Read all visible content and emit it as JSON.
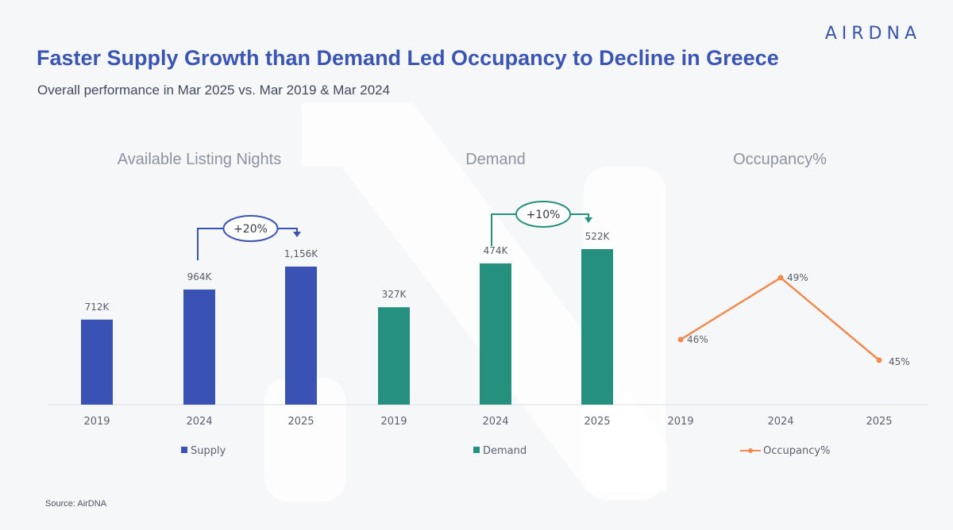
{
  "header": {
    "logo": "AIRDNA",
    "title": "Faster Supply Growth than Demand Led Occupancy to Decline in Greece",
    "subtitle": "Overall performance in Mar 2025 vs. Mar 2019 & Mar 2024"
  },
  "source": "Source: AirDNA",
  "colors": {
    "supply": "#3a52b4",
    "demand": "#26907e",
    "occupancy": "#f08a4e",
    "supply_bubble": "#3a52b4",
    "demand_bubble": "#26907e"
  },
  "chart_data": [
    {
      "type": "bar",
      "title": "Available Listing Nights",
      "categories": [
        "2019",
        "2024",
        "2025"
      ],
      "series": [
        {
          "name": "Supply",
          "values": [
            712,
            964,
            1156
          ]
        }
      ],
      "data_labels": [
        "712K",
        "964K",
        "1,156K"
      ],
      "unit": "K",
      "legend": "bottom",
      "annotation": {
        "text": "+20%",
        "from": "2024",
        "to": "2025"
      }
    },
    {
      "type": "bar",
      "title": "Demand",
      "categories": [
        "2019",
        "2024",
        "2025"
      ],
      "series": [
        {
          "name": "Demand",
          "values": [
            327,
            474,
            522
          ]
        }
      ],
      "data_labels": [
        "327K",
        "474K",
        "522K"
      ],
      "unit": "K",
      "legend": "bottom",
      "annotation": {
        "text": "+10%",
        "from": "2024",
        "to": "2025"
      }
    },
    {
      "type": "line",
      "title": "Occupancy%",
      "categories": [
        "2019",
        "2024",
        "2025"
      ],
      "series": [
        {
          "name": "Occupancy%",
          "values": [
            46,
            49,
            45
          ]
        }
      ],
      "data_labels": [
        "46%",
        "49%",
        "45%"
      ],
      "unit": "%",
      "legend": "bottom"
    }
  ]
}
